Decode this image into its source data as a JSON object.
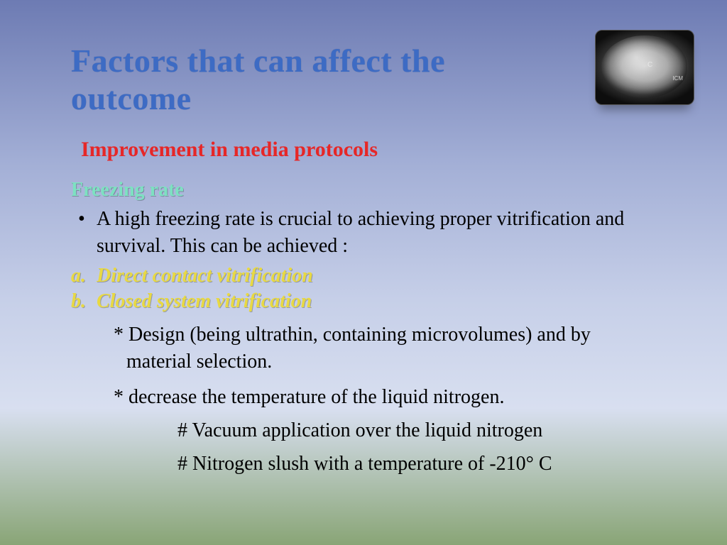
{
  "title": "Factors that can affect the outcome",
  "subtitle": "Improvement in media protocols",
  "section_heading": "Freezing rate",
  "bullet_main": "A high freezing rate is crucial to achieving proper vitrification and survival. This can be achieved :",
  "options": [
    {
      "letter": "a.",
      "text": "Direct contact vitrification"
    },
    {
      "letter": "b.",
      "text": "Closed system vitrification"
    }
  ],
  "sub_points": [
    "* Design (being ultrathin, containing microvolumes) and by material selection.",
    "* decrease the temperature of the liquid nitrogen."
  ],
  "hash_points": [
    "#  Vacuum application over the liquid nitrogen",
    "#  Nitrogen slush with a temperature of -210° C"
  ],
  "thumbnail": {
    "label_c": "C",
    "label_icm": "ICM"
  },
  "colors": {
    "title": "#3d6bc4",
    "subtitle": "#e62727",
    "heading": "#7de1c1",
    "option": "#e8d943",
    "body": "#000000"
  }
}
